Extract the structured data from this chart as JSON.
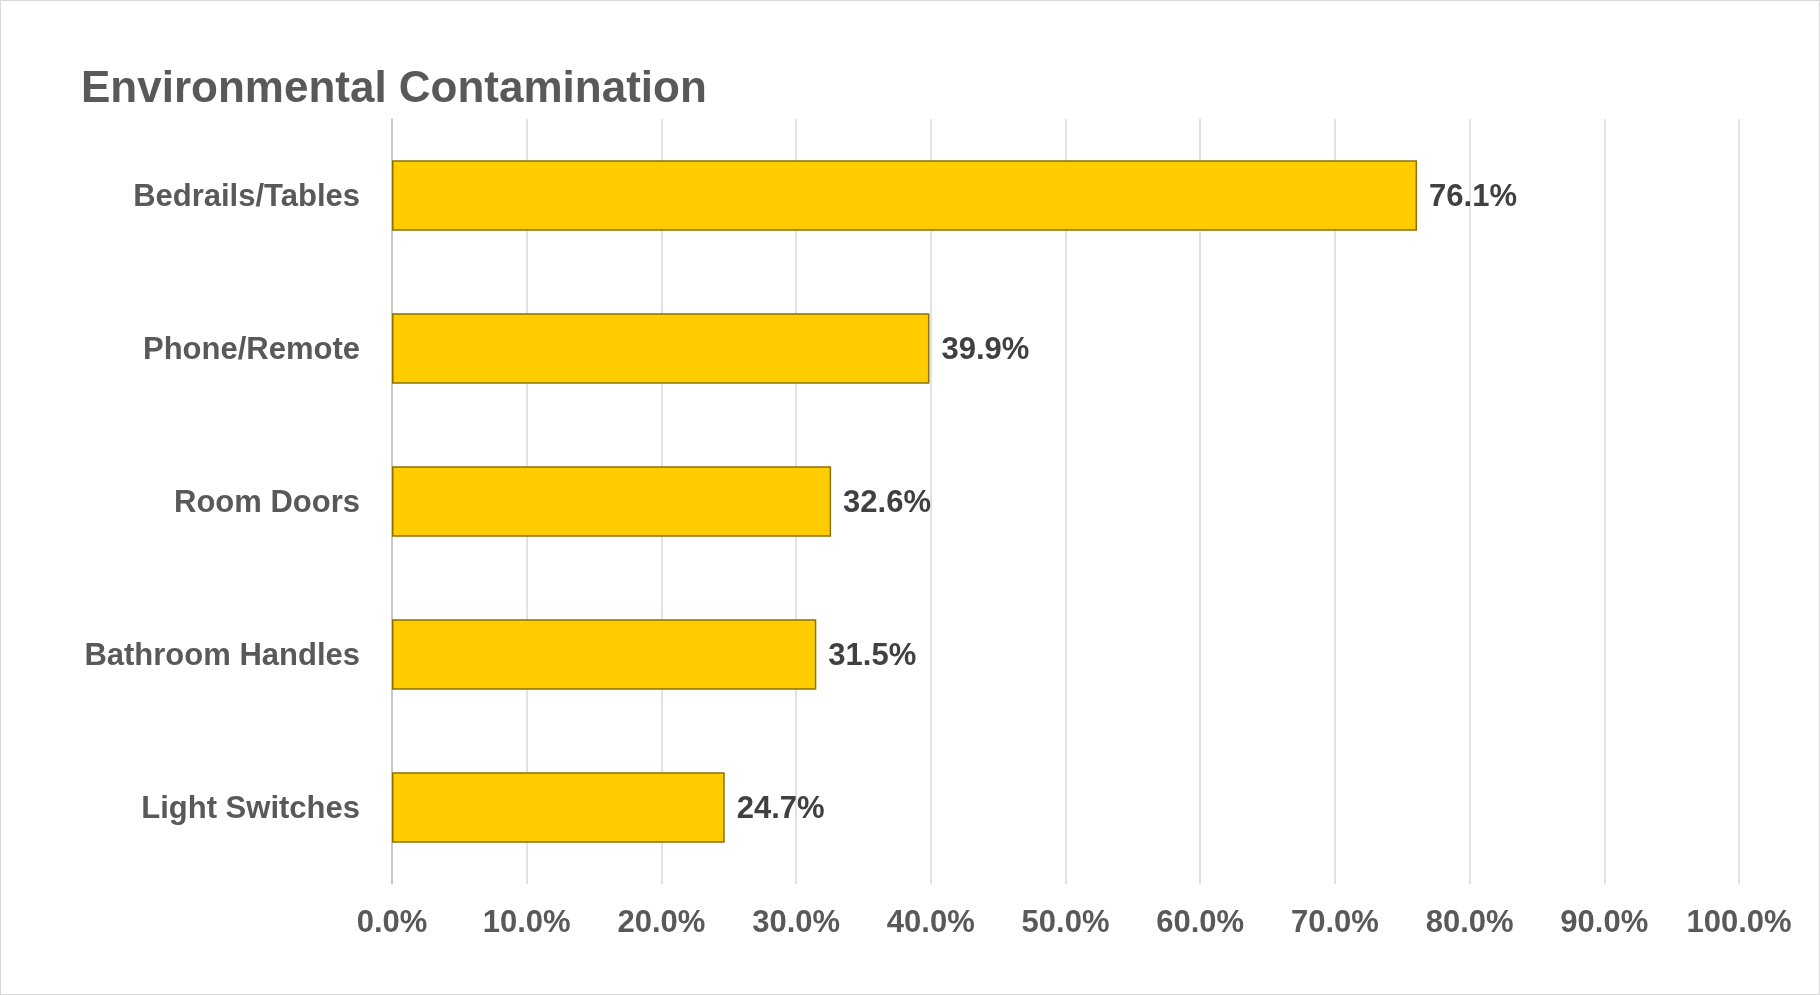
{
  "chart_data": {
    "type": "bar",
    "title": "Environmental Contamination",
    "orientation": "horizontal",
    "categories": [
      "Bedrails/Tables",
      "Phone/Remote",
      "Room Doors",
      "Bathroom Handles",
      "Light Switches"
    ],
    "values": [
      76.1,
      39.9,
      32.6,
      31.5,
      24.7
    ],
    "value_labels": [
      "76.1%",
      "39.9%",
      "32.6%",
      "31.5%",
      "24.7%"
    ],
    "color": "#ffcc00",
    "xlim": [
      0,
      100
    ],
    "xticks": [
      {
        "value": 0,
        "label": "0.0%"
      },
      {
        "value": 10,
        "label": "10.0%"
      },
      {
        "value": 20,
        "label": "20.0%"
      },
      {
        "value": 30,
        "label": "30.0%"
      },
      {
        "value": 40,
        "label": "40.0%"
      },
      {
        "value": 50,
        "label": "50.0%"
      },
      {
        "value": 60,
        "label": "60.0%"
      },
      {
        "value": 70,
        "label": "70.0%"
      },
      {
        "value": 80,
        "label": "80.0%"
      },
      {
        "value": 90,
        "label": "90.0%"
      },
      {
        "value": 100,
        "label": "100.0%"
      }
    ],
    "grid": "x"
  }
}
